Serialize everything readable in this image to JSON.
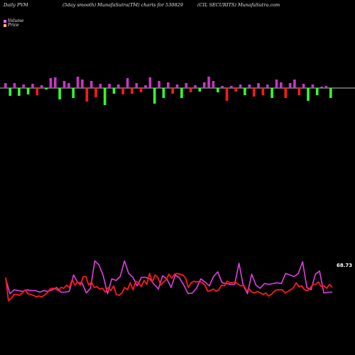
{
  "header": {
    "left": "Daily PVM",
    "center": "(5day smooth) MunafaSutra(TM) charts for 530829",
    "right": "(CIL SECURITS) MunafaSutra.com"
  },
  "legend": {
    "volume_label": "Volume",
    "price_label": "Price"
  },
  "last_value_label": "68.73",
  "colors": {
    "background": "#000000",
    "baseline": "#ffffff",
    "volume_up": "#cc33cc",
    "volume_down_green": "#33ff33",
    "volume_down_red": "#ff1a1a",
    "volume_line": "#e040e0",
    "price_line": "#ff1a1a",
    "legend_volume": "#ff66ff",
    "legend_price": "#ffb380",
    "text": "#e8e8e8"
  },
  "chart_data": {
    "type": "bar+line",
    "volume_bars": {
      "description": "signed volume bars around a zero baseline",
      "values": [
        {
          "v": 7,
          "c": "up"
        },
        {
          "v": -11,
          "c": "green"
        },
        {
          "v": 7,
          "c": "up"
        },
        {
          "v": -11,
          "c": "green"
        },
        {
          "v": 5,
          "c": "up"
        },
        {
          "v": -9,
          "c": "green"
        },
        {
          "v": 6,
          "c": "up"
        },
        {
          "v": -10,
          "c": "red"
        },
        {
          "v": 4,
          "c": "up"
        },
        {
          "v": -2,
          "c": "green"
        },
        {
          "v": 14,
          "c": "up"
        },
        {
          "v": 15,
          "c": "up"
        },
        {
          "v": -16,
          "c": "green"
        },
        {
          "v": 10,
          "c": "up"
        },
        {
          "v": 7,
          "c": "up"
        },
        {
          "v": -14,
          "c": "green"
        },
        {
          "v": 16,
          "c": "up"
        },
        {
          "v": 12,
          "c": "up"
        },
        {
          "v": -19,
          "c": "red"
        },
        {
          "v": 10,
          "c": "up"
        },
        {
          "v": -13,
          "c": "red"
        },
        {
          "v": 6,
          "c": "up"
        },
        {
          "v": -24,
          "c": "green"
        },
        {
          "v": 6,
          "c": "up"
        },
        {
          "v": -8,
          "c": "green"
        },
        {
          "v": 5,
          "c": "up"
        },
        {
          "v": -9,
          "c": "red"
        },
        {
          "v": 14,
          "c": "up"
        },
        {
          "v": -8,
          "c": "red"
        },
        {
          "v": 7,
          "c": "up"
        },
        {
          "v": -6,
          "c": "red"
        },
        {
          "v": 4,
          "c": "up"
        },
        {
          "v": 15,
          "c": "up"
        },
        {
          "v": -22,
          "c": "green"
        },
        {
          "v": 10,
          "c": "up"
        },
        {
          "v": -14,
          "c": "green"
        },
        {
          "v": 8,
          "c": "up"
        },
        {
          "v": -8,
          "c": "red"
        },
        {
          "v": 5,
          "c": "up"
        },
        {
          "v": -14,
          "c": "green"
        },
        {
          "v": 7,
          "c": "up"
        },
        {
          "v": -6,
          "c": "red"
        },
        {
          "v": 4,
          "c": "up"
        },
        {
          "v": -5,
          "c": "green"
        },
        {
          "v": 8,
          "c": "up"
        },
        {
          "v": 16,
          "c": "up"
        },
        {
          "v": 10,
          "c": "up"
        },
        {
          "v": -6,
          "c": "green"
        },
        {
          "v": 3,
          "c": "up"
        },
        {
          "v": -18,
          "c": "red"
        },
        {
          "v": 3,
          "c": "up"
        },
        {
          "v": -5,
          "c": "red"
        },
        {
          "v": 5,
          "c": "up"
        },
        {
          "v": -10,
          "c": "green"
        },
        {
          "v": 5,
          "c": "up"
        },
        {
          "v": -12,
          "c": "red"
        },
        {
          "v": 7,
          "c": "up"
        },
        {
          "v": -10,
          "c": "red"
        },
        {
          "v": 5,
          "c": "up"
        },
        {
          "v": -14,
          "c": "green"
        },
        {
          "v": 12,
          "c": "up"
        },
        {
          "v": 8,
          "c": "up"
        },
        {
          "v": -14,
          "c": "red"
        },
        {
          "v": 7,
          "c": "up"
        },
        {
          "v": 12,
          "c": "up"
        },
        {
          "v": -10,
          "c": "red"
        },
        {
          "v": 6,
          "c": "up"
        },
        {
          "v": -18,
          "c": "green"
        },
        {
          "v": 5,
          "c": "up"
        },
        {
          "v": -10,
          "c": "green"
        },
        {
          "v": 2,
          "c": "up"
        },
        {
          "v": 3,
          "c": "up"
        },
        {
          "v": -14,
          "c": "green"
        }
      ]
    },
    "volume_line": [
      68,
      87,
      82,
      83,
      84,
      82,
      83,
      83,
      85,
      83,
      84,
      82,
      79,
      85,
      85,
      84,
      63,
      73,
      73,
      86,
      80,
      45,
      50,
      64,
      87,
      68,
      70,
      65,
      45,
      61,
      66,
      77,
      66,
      66,
      68,
      75,
      81,
      64,
      68,
      79,
      63,
      67,
      76,
      87,
      86,
      80,
      68,
      72,
      77,
      65,
      59,
      73,
      74,
      75,
      75,
      48,
      76,
      87,
      62,
      76,
      80,
      74,
      75,
      74,
      73,
      74,
      61,
      63,
      65,
      61,
      46,
      79,
      82,
      62,
      58,
      86,
      85,
      85
    ],
    "price_line": [
      66,
      96,
      93,
      88,
      88,
      89,
      86,
      82,
      87,
      88,
      89,
      91,
      90,
      91,
      89,
      86,
      81,
      80,
      81,
      83,
      79,
      80,
      76,
      79,
      69,
      76,
      72,
      76,
      65,
      65,
      76,
      72,
      79,
      78,
      81,
      80,
      85,
      79,
      83,
      77,
      88,
      89,
      86,
      79,
      82,
      73,
      82,
      71,
      73,
      78,
      70,
      75,
      61,
      72,
      63,
      66,
      76,
      72,
      69,
      62,
      67,
      62,
      61,
      62,
      63,
      67,
      79,
      73,
      71,
      72,
      71,
      73,
      76,
      84,
      83,
      81,
      84,
      82,
      76,
      77,
      71,
      73,
      73,
      72,
      75,
      77,
      76,
      83,
      81,
      85,
      86,
      84,
      86,
      88,
      86,
      90,
      88,
      84,
      82,
      82,
      82,
      86,
      84,
      82,
      79,
      73,
      78,
      77,
      82,
      83,
      80,
      75,
      75,
      72,
      78,
      77,
      80,
      75,
      79
    ],
    "y_range": [
      0,
      100
    ],
    "legend_position": "top-left",
    "grid": false
  }
}
